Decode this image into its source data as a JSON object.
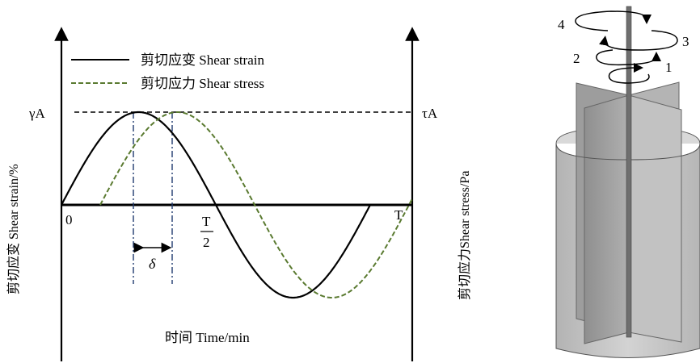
{
  "waveform": {
    "legend": [
      {
        "label": "剪切应变 Shear strain",
        "color": "#000000",
        "style": "solid"
      },
      {
        "label": "剪切应力 Shear stress",
        "color": "#5a7a30",
        "style": "dashed"
      }
    ],
    "y_left_label": "剪切应变 Shear strain/%",
    "y_right_label": "剪切应力Shear stress/Pa",
    "x_label": "时间 Time/min",
    "amplitude_strain_label": "γA",
    "amplitude_stress_label": "τA",
    "origin_label": "0",
    "half_period_num": "T",
    "half_period_den": "2",
    "period_label": "T",
    "phase_label": "δ"
  },
  "rheometer": {
    "rotation_labels": [
      "1",
      "2",
      "3",
      "4"
    ]
  },
  "colors": {
    "strain": "#000000",
    "stress": "#5a7a30",
    "phase_lines": "#1f3a6e",
    "vane": "#a3a3a3",
    "cup": "#c4c4c4"
  }
}
